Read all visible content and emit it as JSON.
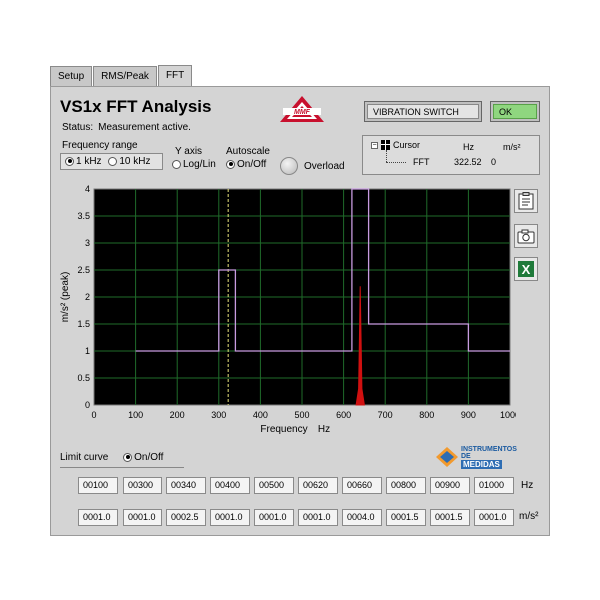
{
  "tabs": [
    {
      "label": "Setup",
      "active": false
    },
    {
      "label": "RMS/Peak",
      "active": false
    },
    {
      "label": "FFT",
      "active": true
    }
  ],
  "header": {
    "title": "VS1x FFT Analysis",
    "status_label": "Status:",
    "status_value": "Measurement active.",
    "vibration_switch": "VIBRATION SWITCH",
    "ok_label": "OK"
  },
  "controls": {
    "frequency_range_label": "Frequency range",
    "freq_options": [
      "1 kHz",
      "10 kHz"
    ],
    "freq_selected": "1 kHz",
    "yaxis_label": "Y axis",
    "yaxis_option": "Log/Lin",
    "autoscale_label": "Autoscale",
    "autoscale_option": "On/Off",
    "overload_label": "Overload"
  },
  "cursor": {
    "label": "Cursor",
    "col_hz": "Hz",
    "col_unit": "m/s²",
    "row_name": "FFT",
    "row_hz": "322.52",
    "row_val": "0"
  },
  "chart_data": {
    "type": "line",
    "xlabel": "Frequency",
    "xunit": "Hz",
    "ylabel": "m/s² (peak)",
    "xlim": [
      0,
      1000
    ],
    "ylim": [
      0,
      4
    ],
    "xticks": [
      0,
      100,
      200,
      300,
      400,
      500,
      600,
      700,
      800,
      900,
      1000
    ],
    "yticks": [
      0,
      0.5,
      1,
      1.5,
      2,
      2.5,
      3,
      3.5,
      4
    ],
    "grid": true,
    "cursor_x": 322.52,
    "series": [
      {
        "kind": "limit-curve",
        "color": "#c89be0",
        "points": [
          [
            100,
            1
          ],
          [
            300,
            1
          ],
          [
            300,
            2.5
          ],
          [
            340,
            2.5
          ],
          [
            340,
            1
          ],
          [
            620,
            1
          ],
          [
            620,
            4
          ],
          [
            660,
            4
          ],
          [
            660,
            1.5
          ],
          [
            900,
            1.5
          ],
          [
            900,
            1
          ],
          [
            1000,
            1
          ]
        ]
      },
      {
        "kind": "fft",
        "color": "#d01010",
        "points": [
          [
            630,
            0
          ],
          [
            636,
            0.3
          ],
          [
            638,
            1.2
          ],
          [
            640,
            2.2
          ],
          [
            642,
            1.2
          ],
          [
            644,
            0.3
          ],
          [
            650,
            0
          ]
        ]
      }
    ]
  },
  "limit_curve": {
    "label": "Limit curve",
    "toggle": "On/Off",
    "hz_values": [
      "00100",
      "00300",
      "00340",
      "00400",
      "00500",
      "00620",
      "00660",
      "00800",
      "00900",
      "01000"
    ],
    "amp_values": [
      "0001.0",
      "0001.0",
      "0002.5",
      "0001.0",
      "0001.0",
      "0001.0",
      "0004.0",
      "0001.5",
      "0001.5",
      "0001.0"
    ],
    "hz_unit": "Hz",
    "amp_unit": "m/s²"
  },
  "logo": {
    "line1": "INSTRUMENTOS",
    "line2": "DE",
    "line3": "MEDIDAS"
  }
}
